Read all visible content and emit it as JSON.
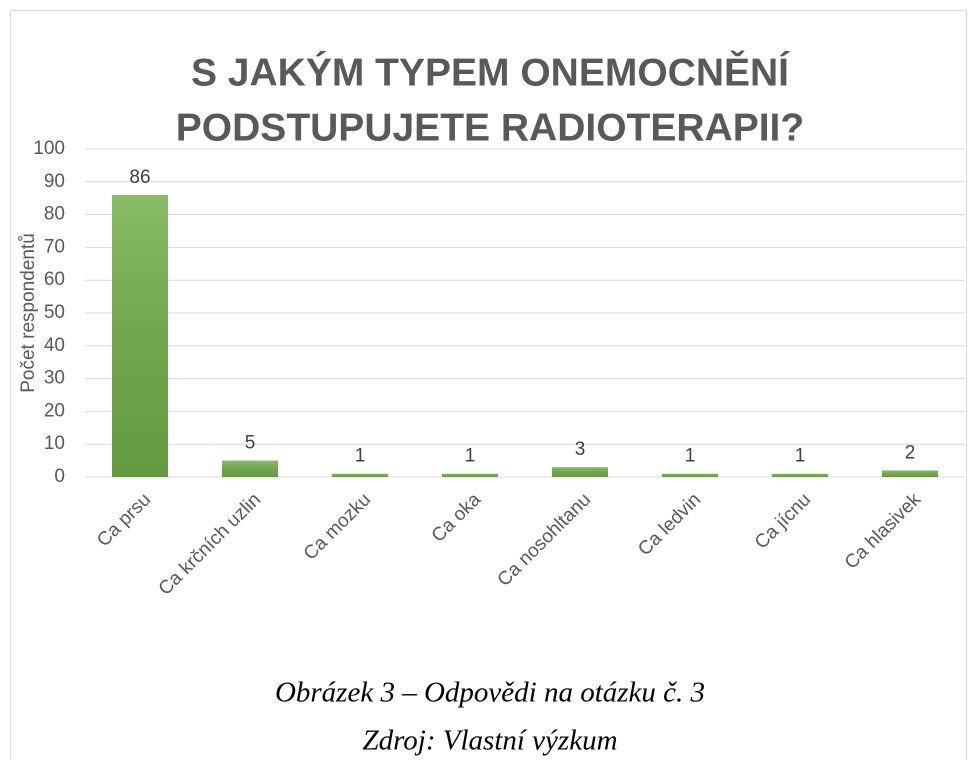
{
  "chart_data": {
    "type": "bar",
    "title": [
      "S JAKÝM TYPEM ONEMOCNĚNÍ",
      "PODSTUPUJETE RADIOTERAPII?"
    ],
    "y_label": "Počet respondentů",
    "categories": [
      "Ca prsu",
      "Ca krčních uzlin",
      "Ca mozku",
      "Ca oka",
      "Ca nosohltanu",
      "Ca ledvin",
      "Ca jícnu",
      "Ca hlasivek"
    ],
    "values": [
      86,
      5,
      1,
      1,
      3,
      1,
      1,
      2
    ],
    "color": "#70ad47",
    "ylim": [
      0,
      100
    ],
    "yticks": [
      0,
      10,
      20,
      30,
      40,
      50,
      60,
      70,
      80,
      90,
      100
    ],
    "grid": true,
    "caption": [
      "Obrázek 3 – Odpovědi na otázku č. 3",
      "Zdroj: Vlastní výzkum"
    ]
  }
}
